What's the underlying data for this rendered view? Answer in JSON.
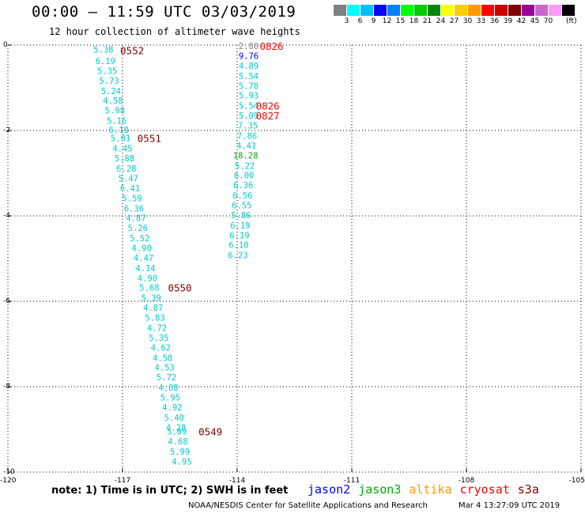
{
  "header": {
    "title": "00:00 – 11:59 UTC 03/03/2019",
    "subtitle": "12 hour collection of altimeter wave heights"
  },
  "colorbar": {
    "unit": "(ft)",
    "colors": [
      "#808080",
      "#00ffff",
      "#00bfff",
      "#0000ff",
      "#0080ff",
      "#00ff00",
      "#00cc00",
      "#008800",
      "#ffff00",
      "#ffcc00",
      "#ff9900",
      "#ff0000",
      "#cc0000",
      "#800000",
      "#990099",
      "#cc66cc",
      "#ff99ff",
      "#000000"
    ],
    "labels": [
      "3",
      "6",
      "9",
      "12",
      "15",
      "18",
      "21",
      "24",
      "27",
      "30",
      "33",
      "36",
      "39",
      "42",
      "45",
      "70"
    ]
  },
  "axes": {
    "x_ticks": [
      "-120",
      "-117",
      "-114",
      "-111",
      "-108",
      "-105"
    ],
    "y_ticks": [
      "0",
      "-2",
      "-4",
      "-6",
      "-8",
      "-10"
    ],
    "grid": "dotted"
  },
  "tracks": [
    {
      "name": "track-west",
      "color": "#00cccc",
      "points": [
        {
          "lon": -117.5,
          "lat": -0.1,
          "v": "5.38"
        },
        {
          "lon": -117.45,
          "lat": -0.37,
          "v": "6.19"
        },
        {
          "lon": -117.4,
          "lat": -0.6,
          "v": "5.35"
        },
        {
          "lon": -117.35,
          "lat": -0.83,
          "v": "5.73"
        },
        {
          "lon": -117.3,
          "lat": -1.07,
          "v": "5.24"
        },
        {
          "lon": -117.25,
          "lat": -1.3,
          "v": "4.58"
        },
        {
          "lon": -117.2,
          "lat": -1.53,
          "v": "5.98"
        },
        {
          "lon": -117.15,
          "lat": -1.77,
          "v": "5.16"
        },
        {
          "lon": -117.1,
          "lat": -1.98,
          "v": "6.18"
        },
        {
          "lon": -117.05,
          "lat": -2.18,
          "v": "5.01"
        },
        {
          "lon": -117.0,
          "lat": -2.42,
          "v": "4.45"
        },
        {
          "lon": -116.95,
          "lat": -2.65,
          "v": "5.88"
        },
        {
          "lon": -116.9,
          "lat": -2.89,
          "v": "6.28"
        },
        {
          "lon": -116.85,
          "lat": -3.12,
          "v": "5.47"
        },
        {
          "lon": -116.8,
          "lat": -3.35,
          "v": "6.41"
        },
        {
          "lon": -116.75,
          "lat": -3.58,
          "v": "5.59"
        },
        {
          "lon": -116.7,
          "lat": -3.82,
          "v": "6.36"
        },
        {
          "lon": -116.65,
          "lat": -4.05,
          "v": "4.87"
        },
        {
          "lon": -116.6,
          "lat": -4.28,
          "v": "5.26"
        },
        {
          "lon": -116.55,
          "lat": -4.52,
          "v": "5.52"
        },
        {
          "lon": -116.5,
          "lat": -4.75,
          "v": "4.90"
        },
        {
          "lon": -116.45,
          "lat": -4.98,
          "v": "4.47"
        },
        {
          "lon": -116.4,
          "lat": -5.22,
          "v": "4.14"
        },
        {
          "lon": -116.35,
          "lat": -5.45,
          "v": "4.90"
        },
        {
          "lon": -116.3,
          "lat": -5.68,
          "v": "5.68"
        },
        {
          "lon": -116.25,
          "lat": -5.92,
          "v": "5.39"
        },
        {
          "lon": -116.2,
          "lat": -6.15,
          "v": "4.87"
        },
        {
          "lon": -116.15,
          "lat": -6.38,
          "v": "5.83"
        },
        {
          "lon": -116.1,
          "lat": -6.62,
          "v": "4.72"
        },
        {
          "lon": -116.05,
          "lat": -6.85,
          "v": "5.35"
        },
        {
          "lon": -116.0,
          "lat": -7.08,
          "v": "4.62"
        },
        {
          "lon": -115.95,
          "lat": -7.32,
          "v": "4.58"
        },
        {
          "lon": -115.9,
          "lat": -7.55,
          "v": "4.53"
        },
        {
          "lon": -115.85,
          "lat": -7.78,
          "v": "5.72"
        },
        {
          "lon": -115.8,
          "lat": -8.02,
          "v": "4.08"
        },
        {
          "lon": -115.75,
          "lat": -8.25,
          "v": "5.95"
        },
        {
          "lon": -115.7,
          "lat": -8.48,
          "v": "4.92"
        },
        {
          "lon": -115.65,
          "lat": -8.72,
          "v": "5.40"
        },
        {
          "lon": -115.6,
          "lat": -8.95,
          "v": "4.28"
        },
        {
          "lon": -115.58,
          "lat": -9.05,
          "v": "5.09"
        },
        {
          "lon": -115.55,
          "lat": -9.28,
          "v": "4.68"
        },
        {
          "lon": -115.5,
          "lat": -9.52,
          "v": "5.99"
        },
        {
          "lon": -115.45,
          "lat": -9.75,
          "v": "4.95"
        }
      ]
    },
    {
      "name": "track-east",
      "color": "#00cccc",
      "points": [
        {
          "lon": -113.7,
          "lat": -0.02,
          "v": "2.80",
          "color": "#808080"
        },
        {
          "lon": -113.7,
          "lat": -0.25,
          "v": "9.76",
          "color": "#0000ff"
        },
        {
          "lon": -113.7,
          "lat": -0.48,
          "v": "4.89"
        },
        {
          "lon": -113.7,
          "lat": -0.72,
          "v": "5.54"
        },
        {
          "lon": -113.7,
          "lat": -0.95,
          "v": "5.78"
        },
        {
          "lon": -113.7,
          "lat": -1.18,
          "v": "5.93"
        },
        {
          "lon": -113.7,
          "lat": -1.42,
          "v": "5.54"
        },
        {
          "lon": -113.7,
          "lat": -1.65,
          "v": "5.09"
        },
        {
          "lon": -113.72,
          "lat": -1.88,
          "v": "7.35"
        },
        {
          "lon": -113.74,
          "lat": -2.12,
          "v": "7.86"
        },
        {
          "lon": -113.76,
          "lat": -2.35,
          "v": "4.41"
        },
        {
          "lon": -113.78,
          "lat": -2.58,
          "v": "18.28",
          "color": "#00aa00"
        },
        {
          "lon": -113.8,
          "lat": -2.82,
          "v": "5.22"
        },
        {
          "lon": -113.82,
          "lat": -3.05,
          "v": "6.00"
        },
        {
          "lon": -113.84,
          "lat": -3.28,
          "v": "6.36"
        },
        {
          "lon": -113.86,
          "lat": -3.52,
          "v": "6.56"
        },
        {
          "lon": -113.88,
          "lat": -3.75,
          "v": "6.55"
        },
        {
          "lon": -113.9,
          "lat": -3.98,
          "v": "5.86"
        },
        {
          "lon": -113.92,
          "lat": -4.22,
          "v": "6.19"
        },
        {
          "lon": -113.94,
          "lat": -4.45,
          "v": "6.19"
        },
        {
          "lon": -113.96,
          "lat": -4.68,
          "v": "6.10"
        },
        {
          "lon": -113.98,
          "lat": -4.92,
          "v": "6.23"
        }
      ]
    }
  ],
  "time_labels": [
    {
      "lon": -116.75,
      "lat": -0.12,
      "t": "0552",
      "color": "#800000"
    },
    {
      "lon": -116.3,
      "lat": -2.18,
      "t": "0551",
      "color": "#800000"
    },
    {
      "lon": -115.5,
      "lat": -5.68,
      "t": "0550",
      "color": "#800000"
    },
    {
      "lon": -114.7,
      "lat": -9.05,
      "t": "0549",
      "color": "#800000"
    },
    {
      "lon": -113.1,
      "lat": -0.02,
      "t": "0826",
      "color": "#ff0000"
    },
    {
      "lon": -113.2,
      "lat": -1.42,
      "t": "0826",
      "color": "#ff0000"
    },
    {
      "lon": -113.2,
      "lat": -1.65,
      "t": "0827",
      "color": "#ff0000"
    }
  ],
  "footer": {
    "note": "note: 1) Time is in UTC; 2) SWH is in feet",
    "legend": [
      {
        "label": "jason2",
        "color": "#0000ff"
      },
      {
        "label": "jason3",
        "color": "#00aa00"
      },
      {
        "label": "altika",
        "color": "#ff9900"
      },
      {
        "label": "cryosat",
        "color": "#ff0000"
      },
      {
        "label": "s3a",
        "color": "#800000"
      }
    ],
    "credit": "NOAA/NESDIS Center for Satellite Applications and Research",
    "timestamp": "Mar  4 13:27:09 UTC 2019"
  }
}
